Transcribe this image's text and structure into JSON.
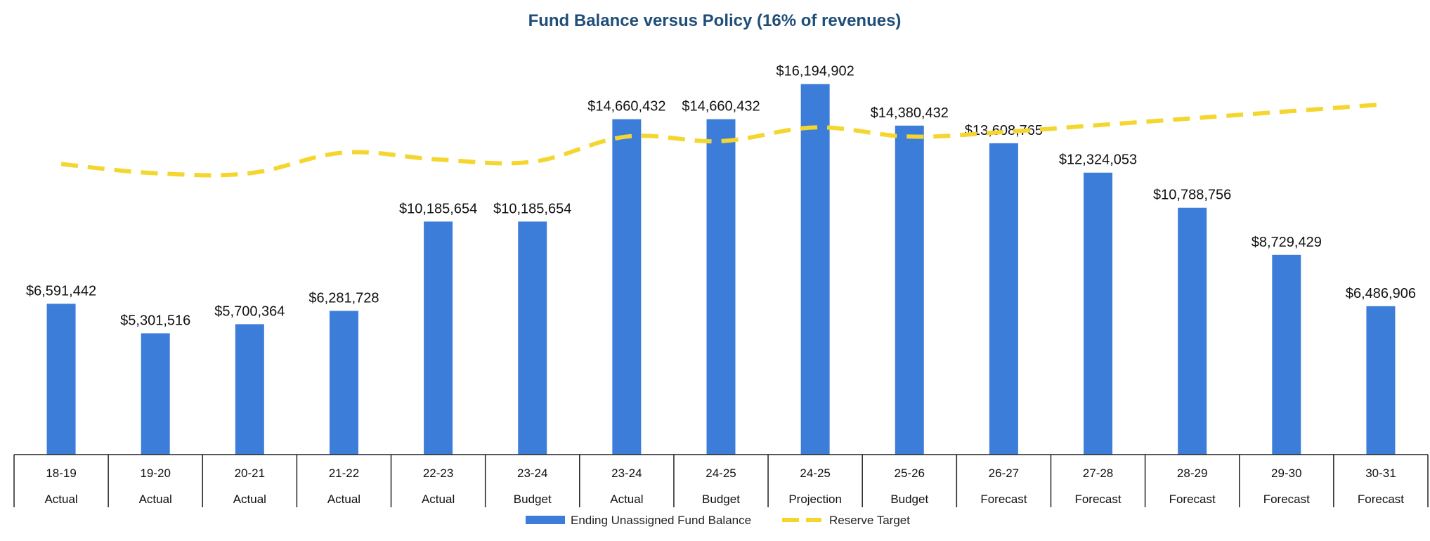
{
  "chart_data": {
    "type": "bar",
    "title": "Fund Balance versus Policy (16% of revenues)",
    "categories": [
      "18-19",
      "19-20",
      "20-21",
      "21-22",
      "22-23",
      "23-24",
      "23-24",
      "24-25",
      "24-25",
      "25-26",
      "26-27",
      "27-28",
      "28-29",
      "29-30",
      "30-31"
    ],
    "category_types": [
      "Actual",
      "Actual",
      "Actual",
      "Actual",
      "Actual",
      "Budget",
      "Actual",
      "Budget",
      "Projection",
      "Budget",
      "Forecast",
      "Forecast",
      "Forecast",
      "Forecast",
      "Forecast"
    ],
    "series": [
      {
        "name": "Ending Unassigned Fund Balance",
        "type": "bar",
        "color": "#3c7dd9",
        "values": [
          6591442,
          5301516,
          5700364,
          6281728,
          10185654,
          10185654,
          14660432,
          14660432,
          16194902,
          14380432,
          13608765,
          12324053,
          10788756,
          8729429,
          6486906
        ],
        "labels": [
          "$6,591,442",
          "$5,301,516",
          "$5,700,364",
          "$6,281,728",
          "$10,185,654",
          "$10,185,654",
          "$14,660,432",
          "$14,660,432",
          "$16,194,902",
          "$14,380,432",
          "$13,608,765",
          "$12,324,053",
          "$10,788,756",
          "$8,729,429",
          "$6,486,906"
        ]
      },
      {
        "name": "Reserve Target",
        "type": "line",
        "style": "dashed",
        "color": "#f5d62f",
        "values": [
          12700000,
          12300000,
          12300000,
          13200000,
          12900000,
          12800000,
          13900000,
          13700000,
          14300000,
          13900000,
          14100000,
          14400000,
          14700000,
          15000000,
          15300000
        ]
      }
    ],
    "ylim": [
      0,
      16800000
    ],
    "xlabel": "",
    "ylabel": "",
    "grid": false,
    "legend": "bottom-center"
  }
}
